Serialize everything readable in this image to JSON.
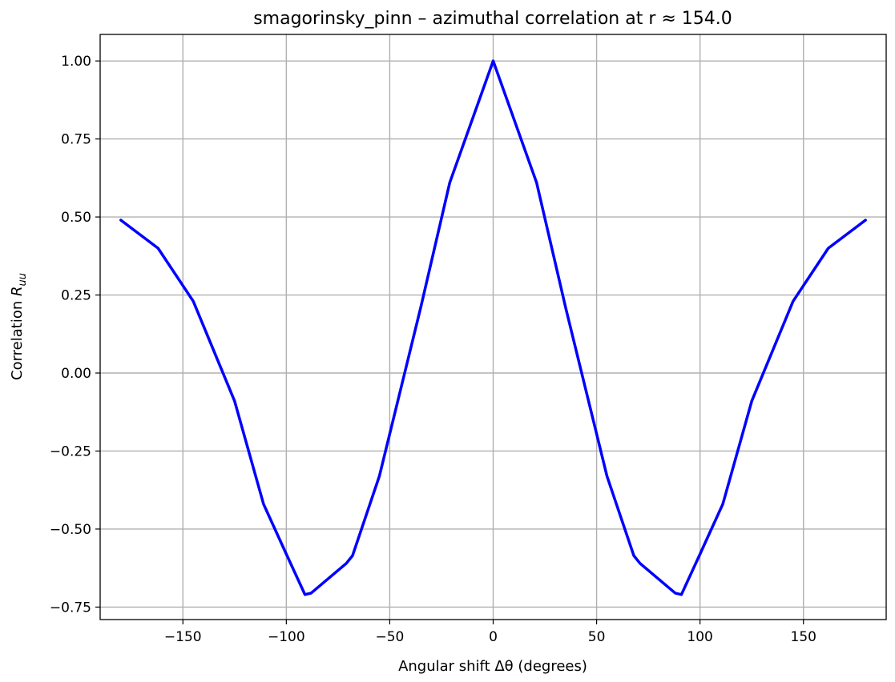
{
  "chart_data": {
    "type": "line",
    "title": "smagorinsky_pinn – azimuthal correlation at r ≈ 154.0",
    "xlabel": "Angular shift Δθ (degrees)",
    "ylabel_main": "Correlation ",
    "ylabel_italic": "R",
    "ylabel_sub": "uu",
    "xlim": [
      -190,
      190
    ],
    "ylim": [
      -0.79,
      1.085
    ],
    "grid": true,
    "xticks": [
      -150,
      -100,
      -50,
      0,
      50,
      100,
      150
    ],
    "xtick_labels": [
      "−150",
      "−100",
      "−50",
      "0",
      "50",
      "100",
      "150"
    ],
    "yticks": [
      -0.75,
      -0.5,
      -0.25,
      0.0,
      0.25,
      0.5,
      0.75,
      1.0
    ],
    "ytick_labels": [
      "−0.75",
      "−0.50",
      "−0.25",
      "0.00",
      "0.25",
      "0.50",
      "0.75",
      "1.00"
    ],
    "series": [
      {
        "color": "#0000ff",
        "x": [
          -180,
          -162,
          -145,
          -125,
          -111,
          -100,
          -91,
          -88,
          -71,
          -68,
          -55,
          -35,
          -21,
          0,
          21,
          35,
          55,
          68,
          71,
          88,
          91,
          100,
          111,
          125,
          145,
          162,
          180
        ],
        "y": [
          0.49,
          0.4,
          0.23,
          -0.09,
          -0.42,
          -0.58,
          -0.71,
          -0.705,
          -0.61,
          -0.585,
          -0.33,
          0.21,
          0.61,
          1.0,
          0.61,
          0.21,
          -0.33,
          -0.585,
          -0.61,
          -0.705,
          -0.71,
          -0.58,
          -0.42,
          -0.09,
          0.23,
          0.4,
          0.49
        ]
      }
    ]
  }
}
